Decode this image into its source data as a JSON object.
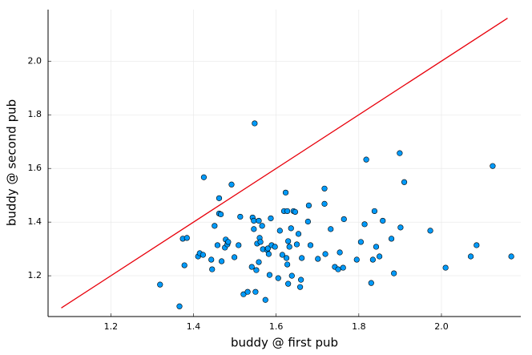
{
  "chart_data": {
    "type": "scatter",
    "xlabel": "buddy @ first pub",
    "ylabel": "buddy @ second pub",
    "xlim": [
      1.048,
      2.192
    ],
    "ylim": [
      1.048,
      2.192
    ],
    "xticks": [
      1.2,
      1.4,
      1.6,
      1.8,
      {
        "value": 2,
        "label": "2.0"
      }
    ],
    "yticks": [
      1.2,
      1.4,
      1.6,
      1.8,
      {
        "value": 2,
        "label": "2.0"
      }
    ],
    "grid": true,
    "series": [
      {
        "type": "scatter",
        "color": "#009af9",
        "x": [
          1.319,
          1.366,
          1.374,
          1.384,
          1.378,
          1.411,
          1.415,
          1.423,
          1.425,
          1.443,
          1.445,
          1.451,
          1.458,
          1.462,
          1.462,
          1.466,
          1.468,
          1.476,
          1.478,
          1.482,
          1.484,
          1.492,
          1.499,
          1.509,
          1.513,
          1.521,
          1.531,
          1.541,
          1.543,
          1.546,
          1.546,
          1.548,
          1.55,
          1.552,
          1.554,
          1.558,
          1.558,
          1.56,
          1.562,
          1.566,
          1.568,
          1.574,
          1.578,
          1.58,
          1.582,
          1.584,
          1.587,
          1.589,
          1.597,
          1.605,
          1.609,
          1.615,
          1.619,
          1.627,
          1.623,
          1.625,
          1.627,
          1.629,
          1.629,
          1.632,
          1.636,
          1.638,
          1.642,
          1.646,
          1.65,
          1.654,
          1.658,
          1.66,
          1.662,
          1.677,
          1.679,
          1.683,
          1.701,
          1.717,
          1.717,
          1.719,
          1.732,
          1.742,
          1.75,
          1.754,
          1.762,
          1.764,
          1.795,
          1.805,
          1.814,
          1.818,
          1.83,
          1.834,
          1.838,
          1.842,
          1.85,
          1.858,
          1.879,
          1.885,
          1.899,
          1.901,
          1.91,
          1.973,
          2.01,
          2.071,
          2.085,
          2.124,
          2.169
        ],
        "values": [
          1.167,
          1.086,
          1.338,
          1.341,
          1.239,
          1.272,
          1.284,
          1.278,
          1.567,
          1.26,
          1.224,
          1.386,
          1.314,
          1.432,
          1.489,
          1.429,
          1.254,
          1.305,
          1.335,
          1.317,
          1.326,
          1.54,
          1.269,
          1.314,
          1.42,
          1.131,
          1.14,
          1.233,
          1.417,
          1.374,
          1.405,
          1.768,
          1.14,
          1.221,
          1.32,
          1.405,
          1.251,
          1.341,
          1.326,
          1.386,
          1.299,
          1.11,
          1.296,
          1.302,
          1.281,
          1.203,
          1.414,
          1.314,
          1.308,
          1.191,
          1.368,
          1.278,
          1.441,
          1.441,
          1.51,
          1.266,
          1.242,
          1.329,
          1.17,
          1.308,
          1.377,
          1.2,
          1.441,
          1.438,
          1.317,
          1.356,
          1.158,
          1.185,
          1.266,
          1.402,
          1.462,
          1.314,
          1.263,
          1.525,
          1.468,
          1.281,
          1.374,
          1.233,
          1.224,
          1.287,
          1.23,
          1.411,
          1.26,
          1.326,
          1.392,
          1.633,
          1.173,
          1.26,
          1.441,
          1.308,
          1.272,
          1.405,
          1.338,
          1.209,
          1.657,
          1.38,
          1.549,
          1.368,
          1.23,
          1.272,
          1.314,
          1.609,
          1.272
        ]
      },
      {
        "type": "line",
        "color": "#e8000b",
        "x": [
          1.08,
          2.16
        ],
        "values": [
          1.08,
          2.16
        ]
      }
    ]
  }
}
